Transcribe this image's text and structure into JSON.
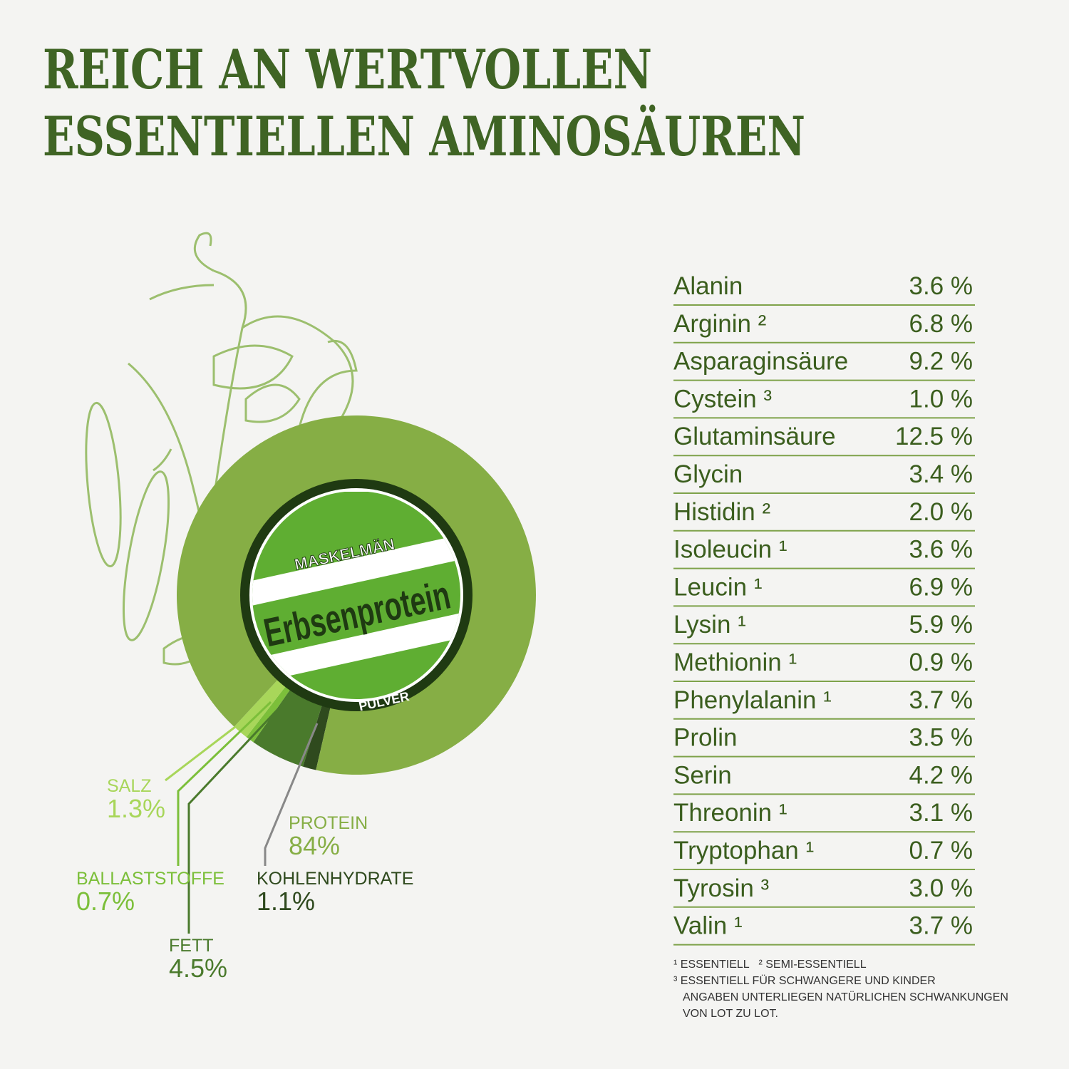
{
  "title": [
    "REICH AN WERTVOLLEN",
    "ESSENTIELLEN AMINOSÄUREN"
  ],
  "badge": {
    "brand": "MASKELMÄN",
    "name": "Erbsenprotein",
    "form": "PULVER"
  },
  "chart_data": {
    "type": "pie",
    "categories": [
      "KOHLENHYDRATE",
      "FETT",
      "BALLASTSTOFFE",
      "SALZ",
      "PROTEIN"
    ],
    "values": [
      1.1,
      4.5,
      0.7,
      1.3,
      84
    ],
    "value_labels": [
      "1.1%",
      "4.5%",
      "0.7%",
      "1.3%",
      "84%"
    ],
    "colors": [
      "#2f4a1e",
      "#4a7a2c",
      "#7cbf3a",
      "#a8d65a",
      "#86ae45"
    ]
  },
  "table": {
    "rows": [
      [
        "Alanin",
        "3.6 %"
      ],
      [
        "Arginin ²",
        "6.8 %"
      ],
      [
        "Asparaginsäure",
        "9.2 %"
      ],
      [
        "Cystein ³",
        "1.0 %"
      ],
      [
        "Glutaminsäure",
        "12.5 %"
      ],
      [
        "Glycin",
        "3.4 %"
      ],
      [
        "Histidin ²",
        "2.0 %"
      ],
      [
        "Isoleucin ¹",
        "3.6 %"
      ],
      [
        "Leucin ¹",
        "6.9 %"
      ],
      [
        "Lysin ¹",
        "5.9 %"
      ],
      [
        "Methionin ¹",
        "0.9 %"
      ],
      [
        "Phenylalanin ¹",
        "3.7 %"
      ],
      [
        "Prolin",
        "3.5 %"
      ],
      [
        "Serin",
        "4.2 %"
      ],
      [
        "Threonin ¹",
        "3.1 %"
      ],
      [
        "Tryptophan ¹",
        "0.7 %"
      ],
      [
        "Tyrosin ³",
        "3.0 %"
      ],
      [
        "Valin ¹",
        "3.7 %"
      ]
    ]
  },
  "footnotes": [
    "¹ ESSENTIELL   ² SEMI-ESSENTIELL",
    "³ ESSENTIELL FÜR SCHWANGERE UND KINDER",
    "ANGABEN UNTERLIEGEN NATÜRLICHEN SCHWANKUNGEN",
    "VON LOT ZU LOT."
  ]
}
